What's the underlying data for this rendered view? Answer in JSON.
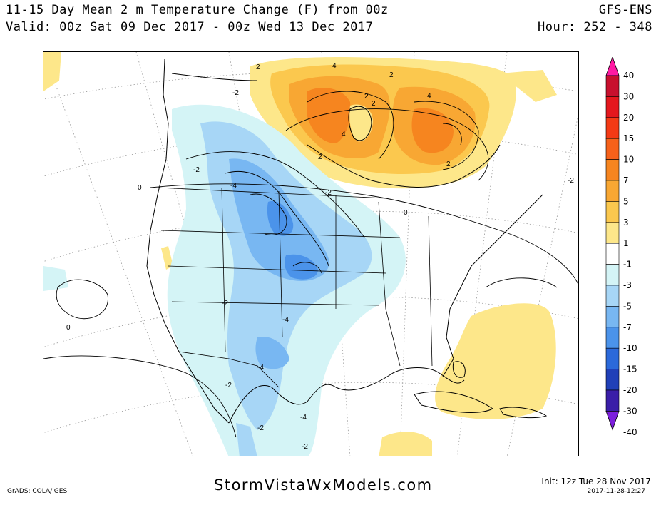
{
  "header": {
    "title": "11-15 Day Mean 2 m Temperature Change (F) from 00z",
    "valid": "Valid: 00z Sat 09 Dec 2017 - 00z Wed 13 Dec 2017",
    "model": "GFS-ENS",
    "hour": "Hour: 252 - 348"
  },
  "legend": {
    "labels": [
      "40",
      "30",
      "20",
      "15",
      "10",
      "7",
      "5",
      "3",
      "1",
      "-1",
      "-3",
      "-5",
      "-7",
      "-10",
      "-15",
      "-20",
      "-30",
      "-40"
    ],
    "colors": [
      "#ff1aa3",
      "#c8102e",
      "#e4171e",
      "#f43a15",
      "#f6611a",
      "#f6851f",
      "#f8a733",
      "#fbc84e",
      "#fde78a",
      "#ffffff",
      "#d4f4f6",
      "#a7d6f6",
      "#78b7f2",
      "#4b93ea",
      "#2b69da",
      "#2040b8",
      "#3a1ea8",
      "#7c1edc"
    ]
  },
  "contour_labels": [
    "-2",
    "-2",
    "-2",
    "-4",
    "-4",
    "-4",
    "-2",
    "-2",
    "-4",
    "-2",
    "-2",
    "0",
    "0",
    "0",
    "2",
    "4",
    "2",
    "4",
    "2",
    "2",
    "2",
    "4",
    "-2",
    "2"
  ],
  "footer": {
    "software": "GrADS: COLA/IGES",
    "site": "StormVistaWxModels.com",
    "init": "Init: 12z Tue 28 Nov 2017",
    "stamp": "2017-11-28-12:27"
  }
}
